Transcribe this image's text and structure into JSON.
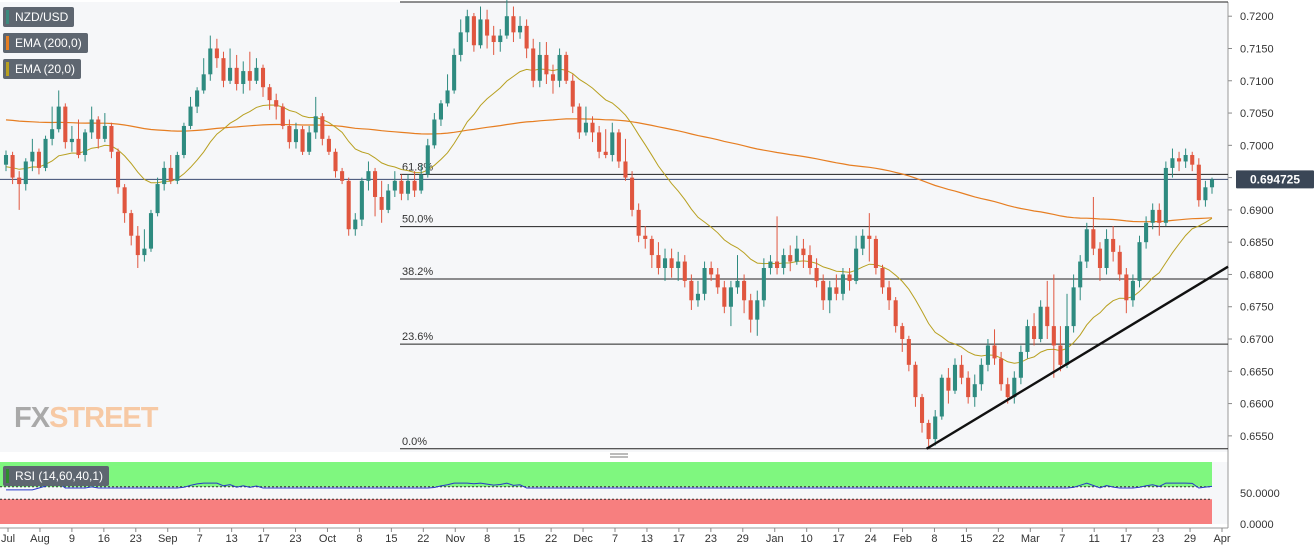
{
  "chart_data": {
    "type": "candlestick",
    "symbol": "NZD/USD",
    "indicators": [
      {
        "name": "EMA (200,0)",
        "color": "#e67e22"
      },
      {
        "name": "EMA (20,0)",
        "color": "#b8a020"
      }
    ],
    "current_price": "0.694725",
    "current_price_value": 0.694725,
    "y_ticks": [
      "0.7200",
      "0.7150",
      "0.7100",
      "0.7050",
      "0.7000",
      "0.6950",
      "0.6900",
      "0.6850",
      "0.6800",
      "0.6750",
      "0.6700",
      "0.6650",
      "0.6600",
      "0.6550"
    ],
    "ylim": [
      0.6525,
      0.7222
    ],
    "x_ticks": [
      "Jul",
      "Aug",
      "9",
      "16",
      "23",
      "Sep",
      "7",
      "13",
      "17",
      "23",
      "Oct",
      "8",
      "15",
      "22",
      "Nov",
      "8",
      "15",
      "22",
      "Dec",
      "7",
      "13",
      "17",
      "23",
      "29",
      "Jan",
      "10",
      "17",
      "24",
      "Feb",
      "8",
      "15",
      "22",
      "Mar",
      "7",
      "11",
      "17",
      "23",
      "29",
      "Apr"
    ],
    "fibonacci": [
      {
        "label": "61.8%",
        "price": 0.6955
      },
      {
        "label": "50.0%",
        "price": 0.6874
      },
      {
        "label": "38.2%",
        "price": 0.6793
      },
      {
        "label": "23.6%",
        "price": 0.6692
      },
      {
        "label": "0.0%",
        "price": 0.653
      }
    ],
    "top_line": 0.7222,
    "trendline": {
      "from": 0.653,
      "to": 0.6812
    },
    "candles_open_close_high_low": [
      [
        0.697,
        0.6985,
        0.6992,
        0.696
      ],
      [
        0.6985,
        0.695,
        0.699,
        0.694
      ],
      [
        0.695,
        0.694,
        0.696,
        0.69
      ],
      [
        0.694,
        0.6975,
        0.698,
        0.693
      ],
      [
        0.6975,
        0.699,
        0.701,
        0.696
      ],
      [
        0.699,
        0.6965,
        0.6995,
        0.6955
      ],
      [
        0.6965,
        0.701,
        0.7015,
        0.696
      ],
      [
        0.701,
        0.7025,
        0.706,
        0.7
      ],
      [
        0.7025,
        0.706,
        0.7085,
        0.702
      ],
      [
        0.706,
        0.7005,
        0.7065,
        0.6995
      ],
      [
        0.7005,
        0.701,
        0.703,
        0.699
      ],
      [
        0.701,
        0.6985,
        0.704,
        0.698
      ],
      [
        0.6985,
        0.702,
        0.7025,
        0.6975
      ],
      [
        0.702,
        0.704,
        0.706,
        0.701
      ],
      [
        0.704,
        0.701,
        0.7045,
        0.6995
      ],
      [
        0.701,
        0.703,
        0.705,
        0.7005
      ],
      [
        0.703,
        0.699,
        0.7035,
        0.698
      ],
      [
        0.699,
        0.6935,
        0.6995,
        0.6925
      ],
      [
        0.6935,
        0.6895,
        0.694,
        0.688
      ],
      [
        0.6895,
        0.686,
        0.69,
        0.6845
      ],
      [
        0.686,
        0.683,
        0.6875,
        0.681
      ],
      [
        0.683,
        0.684,
        0.687,
        0.682
      ],
      [
        0.684,
        0.6895,
        0.69,
        0.6835
      ],
      [
        0.6895,
        0.694,
        0.695,
        0.689
      ],
      [
        0.694,
        0.6965,
        0.6975,
        0.693
      ],
      [
        0.6965,
        0.6945,
        0.6985,
        0.694
      ],
      [
        0.6945,
        0.6985,
        0.699,
        0.694
      ],
      [
        0.6985,
        0.703,
        0.7035,
        0.698
      ],
      [
        0.703,
        0.706,
        0.7075,
        0.7025
      ],
      [
        0.706,
        0.7085,
        0.709,
        0.705
      ],
      [
        0.7085,
        0.711,
        0.7135,
        0.708
      ],
      [
        0.711,
        0.715,
        0.717,
        0.71
      ],
      [
        0.715,
        0.7135,
        0.7165,
        0.712
      ],
      [
        0.7135,
        0.71,
        0.7145,
        0.709
      ],
      [
        0.71,
        0.712,
        0.715,
        0.7095
      ],
      [
        0.712,
        0.7095,
        0.714,
        0.7085
      ],
      [
        0.7095,
        0.7115,
        0.713,
        0.708
      ],
      [
        0.7115,
        0.71,
        0.7145,
        0.7085
      ],
      [
        0.71,
        0.712,
        0.7135,
        0.7095
      ],
      [
        0.712,
        0.709,
        0.7125,
        0.7075
      ],
      [
        0.709,
        0.707,
        0.7095,
        0.7055
      ],
      [
        0.707,
        0.706,
        0.708,
        0.704
      ],
      [
        0.706,
        0.703,
        0.7065,
        0.7025
      ],
      [
        0.703,
        0.7005,
        0.704,
        0.6995
      ],
      [
        0.7005,
        0.7025,
        0.7035,
        0.6995
      ],
      [
        0.7025,
        0.699,
        0.703,
        0.6985
      ],
      [
        0.699,
        0.702,
        0.703,
        0.6985
      ],
      [
        0.702,
        0.7045,
        0.7075,
        0.701
      ],
      [
        0.7045,
        0.701,
        0.705,
        0.7
      ],
      [
        0.701,
        0.699,
        0.7015,
        0.6985
      ],
      [
        0.699,
        0.696,
        0.6995,
        0.695
      ],
      [
        0.696,
        0.6945,
        0.6965,
        0.694
      ],
      [
        0.6945,
        0.687,
        0.695,
        0.686
      ],
      [
        0.687,
        0.6885,
        0.6895,
        0.686
      ],
      [
        0.6885,
        0.6945,
        0.695,
        0.6875
      ],
      [
        0.6945,
        0.696,
        0.6975,
        0.693
      ],
      [
        0.696,
        0.692,
        0.6965,
        0.689
      ],
      [
        0.692,
        0.69,
        0.6945,
        0.688
      ],
      [
        0.69,
        0.693,
        0.694,
        0.6895
      ],
      [
        0.693,
        0.6945,
        0.696,
        0.692
      ],
      [
        0.6945,
        0.6925,
        0.6955,
        0.6915
      ],
      [
        0.6925,
        0.6945,
        0.6955,
        0.6915
      ],
      [
        0.6945,
        0.693,
        0.696,
        0.692
      ],
      [
        0.693,
        0.6955,
        0.697,
        0.6925
      ],
      [
        0.6955,
        0.7,
        0.701,
        0.695
      ],
      [
        0.7,
        0.704,
        0.705,
        0.6995
      ],
      [
        0.704,
        0.7065,
        0.707,
        0.703
      ],
      [
        0.7065,
        0.7085,
        0.711,
        0.706
      ],
      [
        0.7085,
        0.714,
        0.715,
        0.708
      ],
      [
        0.714,
        0.7175,
        0.7195,
        0.713
      ],
      [
        0.7175,
        0.72,
        0.721,
        0.716
      ],
      [
        0.72,
        0.7155,
        0.7205,
        0.7145
      ],
      [
        0.7155,
        0.7195,
        0.7215,
        0.715
      ],
      [
        0.7195,
        0.717,
        0.721,
        0.715
      ],
      [
        0.717,
        0.716,
        0.7185,
        0.714
      ],
      [
        0.716,
        0.717,
        0.718,
        0.7145
      ],
      [
        0.717,
        0.72,
        0.7225,
        0.7165
      ],
      [
        0.72,
        0.7175,
        0.7215,
        0.716
      ],
      [
        0.7175,
        0.7185,
        0.72,
        0.7165
      ],
      [
        0.7185,
        0.715,
        0.7195,
        0.7135
      ],
      [
        0.715,
        0.71,
        0.7165,
        0.709
      ],
      [
        0.71,
        0.714,
        0.716,
        0.709
      ],
      [
        0.714,
        0.711,
        0.716,
        0.7095
      ],
      [
        0.711,
        0.71,
        0.7125,
        0.708
      ],
      [
        0.71,
        0.714,
        0.715,
        0.709
      ],
      [
        0.714,
        0.71,
        0.7145,
        0.7095
      ],
      [
        0.71,
        0.706,
        0.711,
        0.705
      ],
      [
        0.706,
        0.702,
        0.7065,
        0.701
      ],
      [
        0.702,
        0.7035,
        0.706,
        0.7015
      ],
      [
        0.7035,
        0.702,
        0.7045,
        0.7005
      ],
      [
        0.702,
        0.699,
        0.703,
        0.698
      ],
      [
        0.699,
        0.6985,
        0.7025,
        0.698
      ],
      [
        0.6985,
        0.702,
        0.7035,
        0.6975
      ],
      [
        0.702,
        0.6975,
        0.7025,
        0.6965
      ],
      [
        0.6975,
        0.695,
        0.701,
        0.6945
      ],
      [
        0.695,
        0.69,
        0.696,
        0.689
      ],
      [
        0.69,
        0.686,
        0.691,
        0.685
      ],
      [
        0.686,
        0.6855,
        0.6875,
        0.684
      ],
      [
        0.6855,
        0.683,
        0.686,
        0.681
      ],
      [
        0.683,
        0.681,
        0.685,
        0.68
      ],
      [
        0.681,
        0.6825,
        0.684,
        0.679
      ],
      [
        0.6825,
        0.681,
        0.684,
        0.6795
      ],
      [
        0.681,
        0.682,
        0.6835,
        0.679
      ],
      [
        0.682,
        0.679,
        0.683,
        0.678
      ],
      [
        0.679,
        0.676,
        0.68,
        0.6745
      ],
      [
        0.676,
        0.677,
        0.679,
        0.675
      ],
      [
        0.677,
        0.681,
        0.682,
        0.676
      ],
      [
        0.681,
        0.68,
        0.682,
        0.679
      ],
      [
        0.68,
        0.678,
        0.681,
        0.677
      ],
      [
        0.678,
        0.675,
        0.679,
        0.674
      ],
      [
        0.675,
        0.678,
        0.679,
        0.672
      ],
      [
        0.678,
        0.679,
        0.683,
        0.677
      ],
      [
        0.679,
        0.676,
        0.68,
        0.674
      ],
      [
        0.676,
        0.673,
        0.677,
        0.671
      ],
      [
        0.673,
        0.676,
        0.6775,
        0.6705
      ],
      [
        0.676,
        0.681,
        0.6825,
        0.675
      ],
      [
        0.681,
        0.682,
        0.683,
        0.68
      ],
      [
        0.682,
        0.681,
        0.689,
        0.68
      ],
      [
        0.681,
        0.683,
        0.684,
        0.68
      ],
      [
        0.683,
        0.682,
        0.6845,
        0.6805
      ],
      [
        0.682,
        0.684,
        0.686,
        0.6815
      ],
      [
        0.684,
        0.683,
        0.6855,
        0.681
      ],
      [
        0.683,
        0.681,
        0.6845,
        0.68
      ],
      [
        0.681,
        0.679,
        0.6825,
        0.678
      ],
      [
        0.679,
        0.676,
        0.68,
        0.6745
      ],
      [
        0.676,
        0.678,
        0.679,
        0.674
      ],
      [
        0.678,
        0.677,
        0.68,
        0.676
      ],
      [
        0.677,
        0.68,
        0.681,
        0.676
      ],
      [
        0.68,
        0.679,
        0.681,
        0.6775
      ],
      [
        0.679,
        0.684,
        0.686,
        0.6785
      ],
      [
        0.684,
        0.686,
        0.687,
        0.683
      ],
      [
        0.686,
        0.6855,
        0.6895,
        0.682
      ],
      [
        0.6855,
        0.681,
        0.686,
        0.68
      ],
      [
        0.681,
        0.678,
        0.6815,
        0.677
      ],
      [
        0.678,
        0.676,
        0.679,
        0.6745
      ],
      [
        0.676,
        0.672,
        0.6765,
        0.671
      ],
      [
        0.672,
        0.67,
        0.6725,
        0.668
      ],
      [
        0.67,
        0.666,
        0.6705,
        0.665
      ],
      [
        0.666,
        0.661,
        0.6665,
        0.6595
      ],
      [
        0.661,
        0.657,
        0.6615,
        0.6555
      ],
      [
        0.657,
        0.6545,
        0.6575,
        0.653
      ],
      [
        0.6545,
        0.658,
        0.659,
        0.6535
      ],
      [
        0.658,
        0.664,
        0.6645,
        0.6575
      ],
      [
        0.664,
        0.662,
        0.6655,
        0.66
      ],
      [
        0.662,
        0.666,
        0.667,
        0.6615
      ],
      [
        0.666,
        0.664,
        0.6675,
        0.663
      ],
      [
        0.664,
        0.661,
        0.665,
        0.66
      ],
      [
        0.661,
        0.663,
        0.6645,
        0.6595
      ],
      [
        0.663,
        0.666,
        0.667,
        0.662
      ],
      [
        0.666,
        0.669,
        0.67,
        0.665
      ],
      [
        0.669,
        0.667,
        0.6715,
        0.666
      ],
      [
        0.667,
        0.663,
        0.668,
        0.662
      ],
      [
        0.663,
        0.661,
        0.664,
        0.66
      ],
      [
        0.661,
        0.664,
        0.665,
        0.66
      ],
      [
        0.664,
        0.668,
        0.669,
        0.663
      ],
      [
        0.668,
        0.672,
        0.673,
        0.667
      ],
      [
        0.672,
        0.67,
        0.674,
        0.669
      ],
      [
        0.67,
        0.675,
        0.676,
        0.6695
      ],
      [
        0.675,
        0.672,
        0.679,
        0.67
      ],
      [
        0.672,
        0.669,
        0.68,
        0.664
      ],
      [
        0.669,
        0.666,
        0.672,
        0.665
      ],
      [
        0.666,
        0.672,
        0.677,
        0.6655
      ],
      [
        0.672,
        0.678,
        0.68,
        0.671
      ],
      [
        0.678,
        0.682,
        0.683,
        0.676
      ],
      [
        0.682,
        0.687,
        0.688,
        0.681
      ],
      [
        0.687,
        0.684,
        0.692,
        0.683
      ],
      [
        0.684,
        0.681,
        0.685,
        0.679
      ],
      [
        0.681,
        0.6855,
        0.687,
        0.68
      ],
      [
        0.6855,
        0.6835,
        0.6875,
        0.682
      ],
      [
        0.6835,
        0.68,
        0.6845,
        0.679
      ],
      [
        0.68,
        0.676,
        0.681,
        0.674
      ],
      [
        0.676,
        0.679,
        0.68,
        0.675
      ],
      [
        0.679,
        0.685,
        0.686,
        0.678
      ],
      [
        0.685,
        0.688,
        0.689,
        0.684
      ],
      [
        0.688,
        0.69,
        0.691,
        0.687
      ],
      [
        0.69,
        0.688,
        0.691,
        0.686
      ],
      [
        0.688,
        0.6965,
        0.6975,
        0.6875
      ],
      [
        0.6965,
        0.698,
        0.6995,
        0.695
      ],
      [
        0.698,
        0.6975,
        0.699,
        0.696
      ],
      [
        0.6975,
        0.6985,
        0.6995,
        0.6965
      ],
      [
        0.6985,
        0.697,
        0.699,
        0.696
      ],
      [
        0.697,
        0.6915,
        0.698,
        0.6905
      ],
      [
        0.6915,
        0.6935,
        0.6945,
        0.6905
      ],
      [
        0.6935,
        0.6947,
        0.695,
        0.6925
      ]
    ],
    "rsi": {
      "label": "RSI (14,60,40,1)",
      "levels": [
        60,
        40
      ],
      "y_ticks": [
        "50.0000",
        "0.0000"
      ],
      "zones": [
        {
          "color": "#7ff77f"
        },
        {
          "color": "#f77f7f"
        }
      ]
    },
    "colors": {
      "up": "#2e8b80",
      "down": "#e0563f",
      "ema200": "#e67e22",
      "ema20": "#b8a020",
      "rsi_line": "#2a38c8",
      "price_badge": "#3a4656"
    }
  },
  "watermark": {
    "fx": "FX",
    "street": "STREET"
  }
}
